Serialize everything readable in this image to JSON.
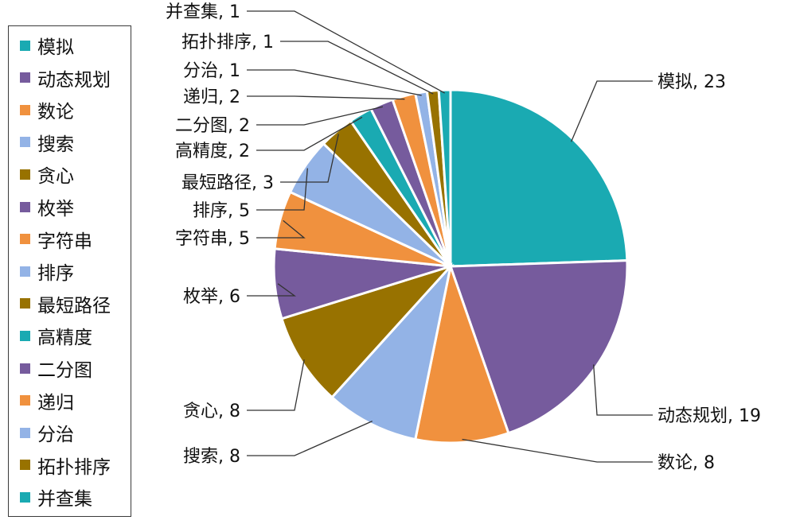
{
  "chart_data": {
    "type": "pie",
    "title": "",
    "slices": [
      {
        "name": "模拟",
        "value": 23,
        "label": "模拟, 23",
        "color": "#1aaab2"
      },
      {
        "name": "动态规划",
        "value": 19,
        "label": "动态规划, 19",
        "color": "#765b9d"
      },
      {
        "name": "数论",
        "value": 8,
        "label": "数论, 8",
        "color": "#f0913e"
      },
      {
        "name": "搜索",
        "value": 8,
        "label": "搜索, 8",
        "color": "#93b3e6"
      },
      {
        "name": "贪心",
        "value": 8,
        "label": "贪心, 8",
        "color": "#987200"
      },
      {
        "name": "枚举",
        "value": 6,
        "label": "枚举, 6",
        "color": "#765b9d"
      },
      {
        "name": "字符串",
        "value": 5,
        "label": "字符串, 5",
        "color": "#f0913e"
      },
      {
        "name": "排序",
        "value": 5,
        "label": "排序, 5",
        "color": "#93b3e6"
      },
      {
        "name": "最短路径",
        "value": 3,
        "label": "最短路径, 3",
        "color": "#987200"
      },
      {
        "name": "高精度",
        "value": 2,
        "label": "高精度, 2",
        "color": "#1aaab2"
      },
      {
        "name": "二分图",
        "value": 2,
        "label": "二分图, 2",
        "color": "#765b9d"
      },
      {
        "name": "递归",
        "value": 2,
        "label": "递归, 2",
        "color": "#f0913e"
      },
      {
        "name": "分治",
        "value": 1,
        "label": "分治, 1",
        "color": "#93b3e6"
      },
      {
        "name": "拓扑排序",
        "value": 1,
        "label": "拓扑排序, 1",
        "color": "#987200"
      },
      {
        "name": "并查集",
        "value": 1,
        "label": "并查集, 1",
        "color": "#1aaab2"
      }
    ],
    "legend_position": "left"
  }
}
